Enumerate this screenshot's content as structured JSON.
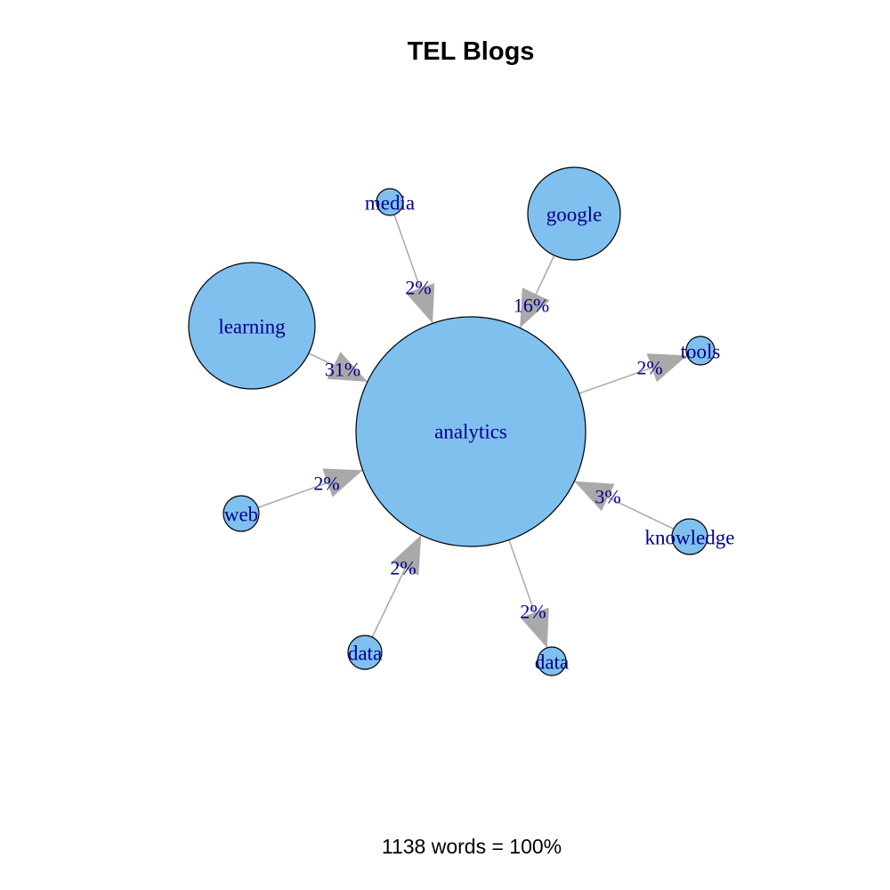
{
  "title": "TEL Blogs",
  "footer": "1138 words = 100%",
  "colors": {
    "node_fill": "#80c0ee",
    "node_stroke": "#000000",
    "edge": "#a9a9a9",
    "label": "#00008b"
  },
  "graph": {
    "center": {
      "id": "analytics",
      "label": "analytics"
    },
    "nodes": [
      {
        "id": "learning",
        "label": "learning",
        "edge_label": "31%",
        "direction": "to-center"
      },
      {
        "id": "media",
        "label": "media",
        "edge_label": "2%",
        "direction": "to-center"
      },
      {
        "id": "google",
        "label": "google",
        "edge_label": "16%",
        "direction": "to-center"
      },
      {
        "id": "tools",
        "label": "tools",
        "edge_label": "2%",
        "direction": "from-center"
      },
      {
        "id": "knowledge",
        "label": "knowledge",
        "edge_label": "3%",
        "direction": "to-center"
      },
      {
        "id": "data-right",
        "label": "data",
        "edge_label": "2%",
        "direction": "from-center"
      },
      {
        "id": "data-left",
        "label": "data",
        "edge_label": "2%",
        "direction": "to-center"
      },
      {
        "id": "web",
        "label": "web",
        "edge_label": "2%",
        "direction": "to-center"
      }
    ]
  }
}
